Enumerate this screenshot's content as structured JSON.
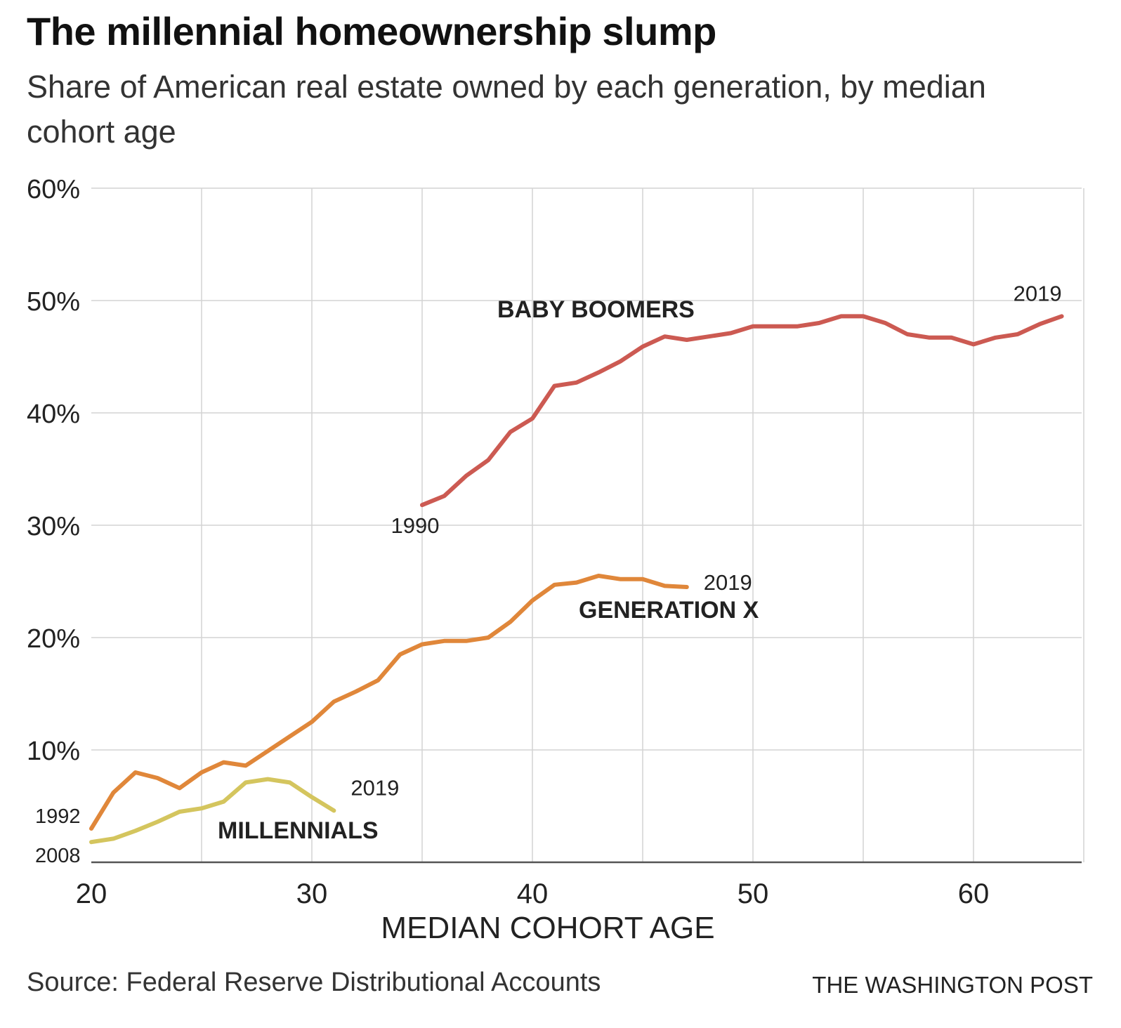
{
  "header": {
    "title": "The millennial homeownership slump",
    "subtitle": "Share of American real estate owned by each generation, by median cohort age"
  },
  "footer": {
    "source": "Source: Federal Reserve Distributional Accounts",
    "credit": "THE WASHINGTON POST"
  },
  "chart_data": {
    "type": "line",
    "title": "The millennial homeownership slump",
    "subtitle": "Share of American real estate owned by each generation, by median cohort age",
    "xlabel": "MEDIAN COHORT AGE",
    "ylabel": "",
    "xlim": [
      20,
      65
    ],
    "ylim": [
      0,
      60
    ],
    "x_ticks": [
      20,
      30,
      40,
      50,
      60
    ],
    "x_tick_labels": [
      "20",
      "30",
      "40",
      "50",
      "60"
    ],
    "y_ticks": [
      10,
      20,
      30,
      40,
      50,
      60
    ],
    "y_tick_labels": [
      "10%",
      "20%",
      "30%",
      "40%",
      "50%",
      "60%"
    ],
    "grid": true,
    "series": [
      {
        "name": "BABY BOOMERS",
        "color": "#cc5a52",
        "start_label": "1990",
        "end_label": "2019",
        "x": [
          35,
          36,
          37,
          38,
          39,
          40,
          41,
          42,
          43,
          44,
          45,
          46,
          47,
          48,
          49,
          50,
          51,
          52,
          53,
          54,
          55,
          56,
          57,
          58,
          59,
          60,
          61,
          62,
          63,
          64
        ],
        "y": [
          31.8,
          32.6,
          34.4,
          35.8,
          38.3,
          39.5,
          42.4,
          42.7,
          43.6,
          44.6,
          45.9,
          46.8,
          46.5,
          46.8,
          47.1,
          47.7,
          47.7,
          47.7,
          48.0,
          48.6,
          48.6,
          48.0,
          47.0,
          46.7,
          46.7,
          46.1,
          46.7,
          47.0,
          47.9,
          48.6
        ]
      },
      {
        "name": "GENERATION X",
        "color": "#e0873a",
        "start_label": "1992",
        "end_label": "2019",
        "x": [
          20,
          21,
          22,
          23,
          24,
          25,
          26,
          27,
          28,
          29,
          30,
          31,
          32,
          33,
          34,
          35,
          36,
          37,
          38,
          39,
          40,
          41,
          42,
          43,
          44,
          45,
          46,
          47
        ],
        "y": [
          3.0,
          6.2,
          8.0,
          7.5,
          6.6,
          8.0,
          8.9,
          8.6,
          9.9,
          11.2,
          12.5,
          14.3,
          15.2,
          16.2,
          18.5,
          19.4,
          19.7,
          19.7,
          20.0,
          21.4,
          23.3,
          24.7,
          24.9,
          25.5,
          25.2,
          25.2,
          24.6,
          24.5
        ]
      },
      {
        "name": "MILLENNIALS",
        "color": "#d4c55e",
        "start_label": "2008",
        "end_label": "2019",
        "x": [
          20,
          21,
          22,
          23,
          24,
          25,
          26,
          27,
          28,
          29,
          30,
          31
        ],
        "y": [
          1.8,
          2.1,
          2.8,
          3.6,
          4.5,
          4.8,
          5.4,
          7.1,
          7.4,
          7.1,
          5.8,
          4.6
        ]
      }
    ]
  }
}
